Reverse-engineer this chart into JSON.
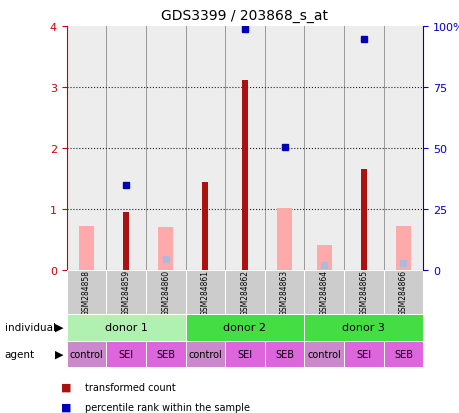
{
  "title": "GDS3399 / 203868_s_at",
  "samples": [
    "GSM284858",
    "GSM284859",
    "GSM284860",
    "GSM284861",
    "GSM284862",
    "GSM284863",
    "GSM284864",
    "GSM284865",
    "GSM284866"
  ],
  "transformed_count": [
    0.0,
    0.95,
    0.0,
    1.45,
    3.12,
    0.0,
    0.0,
    1.65,
    0.0
  ],
  "percentile_rank_left": [
    null,
    1.4,
    null,
    null,
    3.95,
    2.02,
    null,
    3.78,
    null
  ],
  "absent_value": [
    0.72,
    null,
    0.7,
    null,
    null,
    1.02,
    0.42,
    null,
    0.72
  ],
  "absent_rank": [
    null,
    null,
    0.18,
    null,
    null,
    null,
    0.08,
    null,
    0.12
  ],
  "donors": [
    {
      "label": "donor 1",
      "start": 0,
      "end": 3,
      "color": "#b0f0b0"
    },
    {
      "label": "donor 2",
      "start": 3,
      "end": 6,
      "color": "#44dd44"
    },
    {
      "label": "donor 3",
      "start": 6,
      "end": 9,
      "color": "#44dd44"
    }
  ],
  "agents": [
    "control",
    "SEI",
    "SEB",
    "control",
    "SEI",
    "SEB",
    "control",
    "SEI",
    "SEB"
  ],
  "agent_color": "#dd66dd",
  "control_color": "#cc88cc",
  "ylim_left": [
    0,
    4
  ],
  "ylim_right": [
    0,
    100
  ],
  "yticks_left": [
    0,
    1,
    2,
    3,
    4
  ],
  "yticks_right": [
    0,
    25,
    50,
    75,
    100
  ],
  "bar_color_red": "#aa1111",
  "bar_color_pink": "#ffaaaa",
  "dot_color_blue": "#0000bb",
  "dot_color_lightblue": "#aabbdd",
  "grid_color": "#222222",
  "sample_bg": "#cccccc",
  "left_axis_color": "#cc0000",
  "right_axis_color": "#0000cc",
  "chart_bg": "#ffffff"
}
